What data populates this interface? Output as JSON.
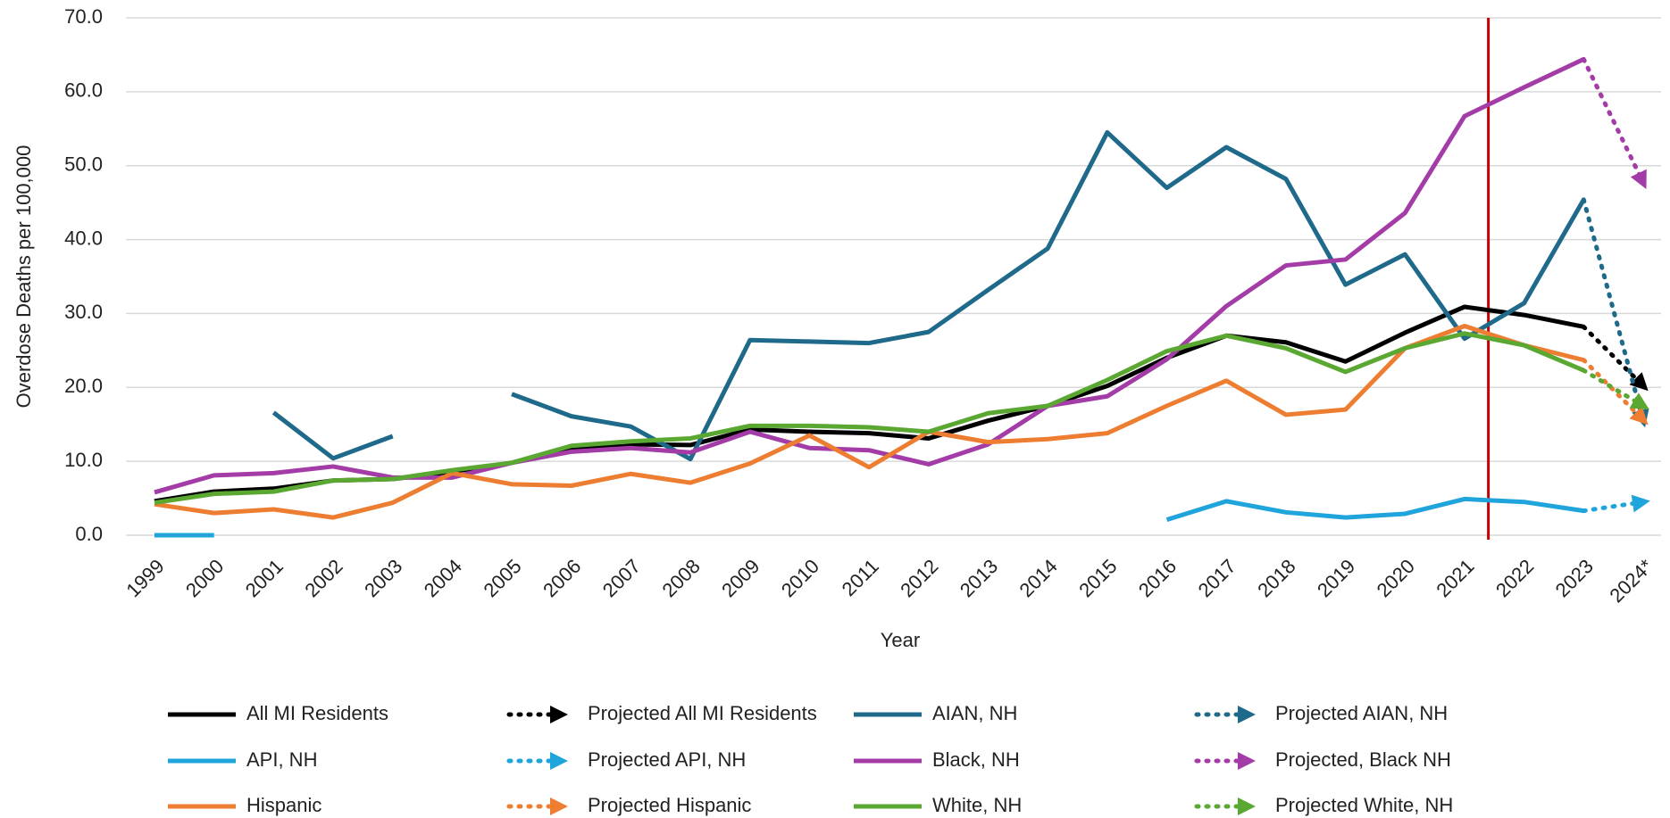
{
  "chart_data": {
    "type": "line",
    "y_label": "Overdose Deaths per 100,000",
    "x_label": "Year",
    "categories": [
      "1999",
      "2000",
      "2001",
      "2002",
      "2003",
      "2004",
      "2005",
      "2006",
      "2007",
      "2008",
      "2009",
      "2010",
      "2011",
      "2012",
      "2013",
      "2014",
      "2015",
      "2016",
      "2017",
      "2018",
      "2019",
      "2020",
      "2021",
      "2022",
      "2023",
      "2024*"
    ],
    "ylim": [
      0,
      70
    ],
    "yticks": [
      {
        "value": 0,
        "label": "0.0"
      },
      {
        "value": 10,
        "label": "10.0"
      },
      {
        "value": 20,
        "label": "20.0"
      },
      {
        "value": 30,
        "label": "30.0"
      },
      {
        "value": 40,
        "label": "40.0"
      },
      {
        "value": 50,
        "label": "50.0"
      },
      {
        "value": 60,
        "label": "60.0"
      },
      {
        "value": 70,
        "label": "70.0"
      }
    ],
    "grid": true,
    "legend": "bottom",
    "series": [
      {
        "name": "All MI Residents",
        "color": "#000000",
        "style": "solid",
        "values": [
          4.6,
          5.9,
          6.3,
          7.4,
          7.6,
          8.6,
          9.8,
          11.8,
          12.3,
          12.2,
          14.3,
          14.0,
          13.8,
          13.1,
          15.5,
          17.5,
          20.2,
          24.0,
          27.0,
          26.1,
          23.5,
          27.4,
          30.9,
          29.8,
          28.2,
          null
        ]
      },
      {
        "name": "Projected All MI Residents",
        "color": "#000000",
        "style": "dotted",
        "values": [
          null,
          null,
          null,
          null,
          null,
          null,
          null,
          null,
          null,
          null,
          null,
          null,
          null,
          null,
          null,
          null,
          null,
          null,
          null,
          null,
          null,
          null,
          null,
          null,
          28.2,
          20.2
        ]
      },
      {
        "name": "AIAN, NH",
        "color": "#1f6a8a",
        "style": "solid",
        "values": [
          null,
          null,
          16.6,
          10.4,
          13.4,
          null,
          19.1,
          16.1,
          14.7,
          10.3,
          26.4,
          26.2,
          26.0,
          27.5,
          33.2,
          38.8,
          54.5,
          47.0,
          52.5,
          48.2,
          33.9,
          38.0,
          26.6,
          31.4,
          45.4,
          null
        ]
      },
      {
        "name": "Projected AIAN, NH",
        "color": "#1f6a8a",
        "style": "dotted",
        "values": [
          null,
          null,
          null,
          null,
          null,
          null,
          null,
          null,
          null,
          null,
          null,
          null,
          null,
          null,
          null,
          null,
          null,
          null,
          null,
          null,
          null,
          null,
          null,
          null,
          45.4,
          15.5
        ]
      },
      {
        "name": "API, NH",
        "color": "#1fa4dc",
        "style": "solid",
        "values": [
          0,
          0,
          null,
          null,
          null,
          null,
          null,
          null,
          null,
          null,
          null,
          null,
          null,
          null,
          null,
          null,
          null,
          2.1,
          4.6,
          3.1,
          2.4,
          2.9,
          4.9,
          4.5,
          3.3,
          null
        ]
      },
      {
        "name": "Projected API, NH",
        "color": "#1fa4dc",
        "style": "dotted",
        "values": [
          null,
          null,
          null,
          null,
          null,
          null,
          null,
          null,
          null,
          null,
          null,
          null,
          null,
          null,
          null,
          null,
          null,
          null,
          null,
          null,
          null,
          null,
          null,
          null,
          3.3,
          4.5
        ]
      },
      {
        "name": "Black, NH",
        "color": "#a43ca8",
        "style": "solid",
        "values": [
          5.8,
          8.1,
          8.4,
          9.3,
          7.8,
          7.8,
          9.8,
          11.3,
          11.8,
          11.2,
          14.0,
          11.8,
          11.5,
          9.6,
          12.3,
          17.5,
          18.8,
          23.8,
          31.0,
          36.5,
          37.3,
          43.6,
          56.7,
          60.6,
          64.4,
          null
        ]
      },
      {
        "name": "Projected, Black NH",
        "color": "#a43ca8",
        "style": "dotted",
        "values": [
          null,
          null,
          null,
          null,
          null,
          null,
          null,
          null,
          null,
          null,
          null,
          null,
          null,
          null,
          null,
          null,
          null,
          null,
          null,
          null,
          null,
          null,
          null,
          null,
          64.4,
          47.7
        ]
      },
      {
        "name": "Hispanic",
        "color": "#ed7d31",
        "style": "solid",
        "values": [
          4.2,
          3.0,
          3.5,
          2.4,
          4.4,
          8.4,
          6.9,
          6.7,
          8.3,
          7.1,
          9.7,
          13.5,
          9.2,
          14.0,
          12.6,
          13.0,
          13.8,
          17.5,
          20.9,
          16.3,
          17.0,
          25.3,
          28.3,
          25.7,
          23.7,
          null
        ]
      },
      {
        "name": "Projected Hispanic",
        "color": "#ed7d31",
        "style": "dotted",
        "values": [
          null,
          null,
          null,
          null,
          null,
          null,
          null,
          null,
          null,
          null,
          null,
          null,
          null,
          null,
          null,
          null,
          null,
          null,
          null,
          null,
          null,
          null,
          null,
          null,
          23.7,
          15.6
        ]
      },
      {
        "name": "White, NH",
        "color": "#5aa832",
        "style": "solid",
        "values": [
          4.4,
          5.6,
          5.9,
          7.4,
          7.6,
          8.8,
          9.8,
          12.1,
          12.7,
          13.1,
          14.8,
          14.8,
          14.6,
          14.0,
          16.5,
          17.5,
          21.0,
          24.9,
          27.0,
          25.3,
          22.1,
          25.3,
          27.3,
          25.7,
          22.3,
          null
        ]
      },
      {
        "name": "Projected White, NH",
        "color": "#5aa832",
        "style": "dotted",
        "values": [
          null,
          null,
          null,
          null,
          null,
          null,
          null,
          null,
          null,
          null,
          null,
          null,
          null,
          null,
          null,
          null,
          null,
          null,
          null,
          null,
          null,
          null,
          null,
          null,
          22.3,
          17.5
        ]
      }
    ]
  }
}
